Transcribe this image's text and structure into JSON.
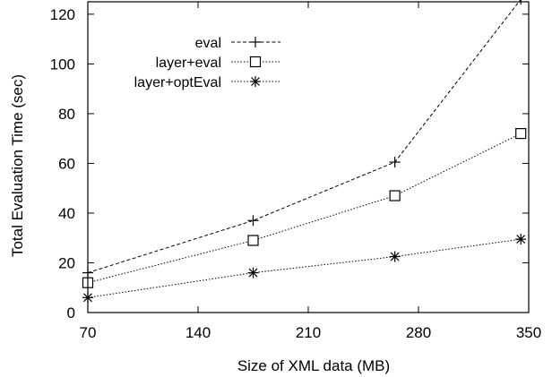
{
  "chart_data": {
    "type": "line",
    "xlabel": "Size of XML data (MB)",
    "ylabel": "Total Evaluation Time (sec)",
    "xlim": [
      70,
      350
    ],
    "ylim": [
      0,
      125
    ],
    "xticks": [
      70,
      140,
      210,
      280,
      350
    ],
    "yticks": [
      0,
      20,
      40,
      60,
      80,
      100,
      120
    ],
    "grid": false,
    "legend_position": "top-left",
    "series": [
      {
        "name": "eval",
        "marker": "plus",
        "line": "dashed",
        "x": [
          70,
          175,
          265,
          345
        ],
        "y": [
          16,
          37,
          60.5,
          126
        ]
      },
      {
        "name": "layer+eval",
        "marker": "square",
        "line": "dotted",
        "x": [
          70,
          175,
          265,
          345
        ],
        "y": [
          12,
          29,
          47,
          72
        ]
      },
      {
        "name": "layer+optEval",
        "marker": "asterisk",
        "line": "dotted",
        "x": [
          70,
          175,
          265,
          345
        ],
        "y": [
          6,
          16,
          22.5,
          29.5
        ]
      }
    ]
  }
}
